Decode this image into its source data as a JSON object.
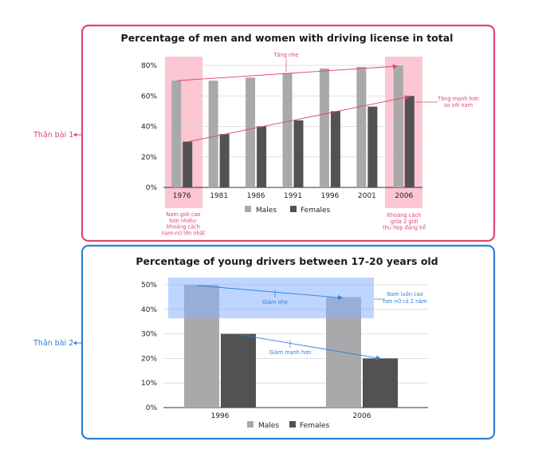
{
  "colors": {
    "males": "#a9a9ab",
    "females": "#525254",
    "pink": "#e0446a",
    "pink_fill": "#f9b3c3",
    "blue": "#2f7fd8",
    "blue_fill": "#88b2ff",
    "grid": "#d8d8d8"
  },
  "section1": {
    "side_label": "Thân bài 1",
    "ann_left": [
      "Nam giới cao",
      "hơn nhiều-",
      "khoảng cách",
      "nam-nữ lớn nhất"
    ],
    "ann_top": "Tăng nhẹ",
    "ann_right_top": [
      "Tăng mạnh hơn",
      "so với nam"
    ],
    "ann_right_bottom": [
      "Khoảng cách",
      "giữa 2 giới",
      "thu hẹp đáng kể"
    ]
  },
  "section2": {
    "side_label": "Thân bài 2",
    "ann_box": [
      "Nam luôn cao",
      "hơn nữ cả 2 năm"
    ],
    "ann_males": "Giảm nhẹ",
    "ann_females": "Giảm mạnh hơn"
  },
  "chart_data": [
    {
      "type": "bar",
      "title": "Percentage of men and women with driving license in total",
      "categories": [
        "1976",
        "1981",
        "1986",
        "1991",
        "1996",
        "2001",
        "2006"
      ],
      "series": [
        {
          "name": "Males",
          "values": [
            70,
            70,
            72,
            75,
            78,
            79,
            80
          ]
        },
        {
          "name": "Females",
          "values": [
            30,
            35,
            40,
            44,
            50,
            53,
            60
          ]
        }
      ],
      "yticks": [
        "0%",
        "20%",
        "40%",
        "60%",
        "80%"
      ],
      "ylim": [
        0,
        85
      ],
      "grid": true,
      "legend": "bottom"
    },
    {
      "type": "bar",
      "title": "Percentage of young drivers between 17-20 years old",
      "categories": [
        "1996",
        "2006"
      ],
      "series": [
        {
          "name": "Males",
          "values": [
            50,
            45
          ]
        },
        {
          "name": "Females",
          "values": [
            30,
            20
          ]
        }
      ],
      "yticks": [
        "0%",
        "10%",
        "20%",
        "30%",
        "40%",
        "50%"
      ],
      "ylim": [
        0,
        52
      ],
      "grid": true,
      "legend": "bottom"
    }
  ]
}
